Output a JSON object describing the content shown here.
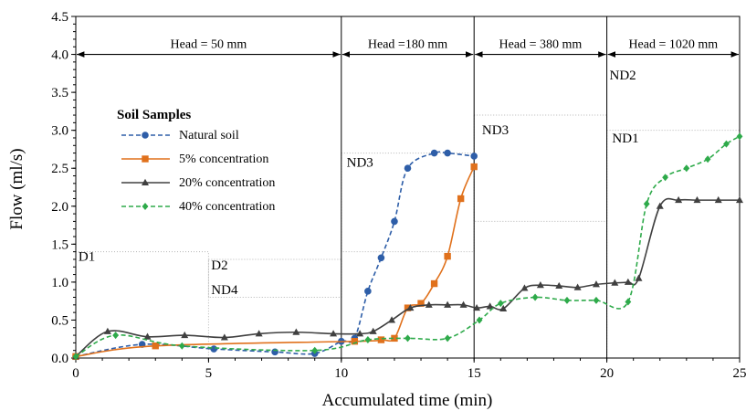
{
  "chart_data": {
    "type": "line",
    "xlabel": "Accumulated time (min)",
    "ylabel": "Flow (ml/s)",
    "xlim": [
      0,
      25
    ],
    "ylim": [
      0,
      4.5
    ],
    "xticks": [
      "0",
      "5",
      "10",
      "15",
      "20",
      "25"
    ],
    "yticks": [
      "0.0",
      "0.5",
      "1.0",
      "1.5",
      "2.0",
      "2.5",
      "3.0",
      "3.5",
      "4.0",
      "4.5"
    ],
    "legend": {
      "title": "Soil Samples",
      "placement": "left"
    },
    "head_intervals": [
      {
        "label": "Head = 50 mm",
        "from": 0,
        "to": 10,
        "y": 4.0
      },
      {
        "label": "Head =180 mm",
        "from": 10,
        "to": 15,
        "y": 4.0
      },
      {
        "label": "Head = 380 mm",
        "from": 15,
        "to": 20,
        "y": 4.0
      },
      {
        "label": "Head = 1020 mm",
        "from": 20,
        "to": 25,
        "y": 4.0
      }
    ],
    "phase_boundaries": [
      10,
      15,
      20
    ],
    "annotations": [
      {
        "text": "D1",
        "x": 0.1,
        "y": 1.28
      },
      {
        "text": "D2",
        "x": 5.1,
        "y": 1.17
      },
      {
        "text": "ND4",
        "x": 5.1,
        "y": 0.84
      },
      {
        "text": "ND3",
        "x": 10.2,
        "y": 2.52
      },
      {
        "text": "ND3",
        "x": 15.3,
        "y": 2.95
      },
      {
        "text": "ND2",
        "x": 20.1,
        "y": 3.67
      },
      {
        "text": "ND1",
        "x": 20.2,
        "y": 2.84
      }
    ],
    "reference_boxes": [
      {
        "x0": 0,
        "x1": 5,
        "y0": 0,
        "y1": 1.4
      },
      {
        "x0": 5,
        "x1": 10,
        "y0": 0.8,
        "y1": 1.3
      },
      {
        "x0": 10,
        "x1": 15,
        "y0": 1.4,
        "y1": 2.7
      },
      {
        "x0": 15,
        "x1": 20,
        "y0": 1.8,
        "y1": 3.2
      },
      {
        "x0": 20,
        "x1": 25,
        "y0": 0,
        "y1": 3.0
      }
    ],
    "series": [
      {
        "name": "Natural soil",
        "color": "#2E5EA8",
        "dash": true,
        "marker": "circle",
        "x": [
          0,
          2.5,
          5.2,
          7.5,
          9.0,
          10.0,
          10.5,
          11.0,
          11.5,
          12.0,
          12.5,
          13.5,
          14.0,
          15.0
        ],
        "y": [
          0.02,
          0.18,
          0.12,
          0.08,
          0.06,
          0.22,
          0.26,
          0.88,
          1.32,
          1.8,
          2.5,
          2.7,
          2.7,
          2.66
        ]
      },
      {
        "name": "5% concentration",
        "color": "#E0711C",
        "dash": false,
        "marker": "square",
        "x": [
          0,
          3.0,
          10.5,
          11.5,
          12.0,
          12.5,
          13.0,
          13.5,
          14.0,
          14.5,
          15.0
        ],
        "y": [
          0.02,
          0.16,
          0.22,
          0.24,
          0.26,
          0.66,
          0.72,
          0.98,
          1.34,
          2.1,
          2.52
        ]
      },
      {
        "name": "20% concentration",
        "color": "#404040",
        "dash": false,
        "marker": "triangle",
        "x": [
          0,
          1.2,
          2.7,
          4.1,
          5.6,
          6.9,
          8.3,
          9.7,
          10.7,
          11.2,
          11.9,
          12.6,
          13.3,
          14.0,
          14.6,
          15.1,
          15.6,
          16.1,
          16.9,
          17.5,
          18.2,
          18.9,
          19.6,
          20.3,
          20.8,
          21.2,
          22.0,
          22.7,
          23.4,
          24.2,
          25.0
        ],
        "y": [
          0.02,
          0.35,
          0.28,
          0.3,
          0.27,
          0.32,
          0.34,
          0.32,
          0.32,
          0.35,
          0.5,
          0.66,
          0.7,
          0.7,
          0.7,
          0.66,
          0.68,
          0.65,
          0.92,
          0.96,
          0.95,
          0.93,
          0.97,
          0.99,
          1.0,
          1.05,
          2.0,
          2.08,
          2.08,
          2.08,
          2.08
        ]
      },
      {
        "name": "40% concentration",
        "color": "#2EAA4A",
        "dash": true,
        "marker": "diamond",
        "x": [
          0,
          1.5,
          4.0,
          9.0,
          11.0,
          12.5,
          14.0,
          15.2,
          16.0,
          17.3,
          18.5,
          19.6,
          20.8,
          21.5,
          22.2,
          23.0,
          23.8,
          24.5,
          25.0
        ],
        "y": [
          0.02,
          0.3,
          0.16,
          0.1,
          0.24,
          0.26,
          0.26,
          0.5,
          0.72,
          0.8,
          0.76,
          0.76,
          0.74,
          2.03,
          2.38,
          2.5,
          2.62,
          2.82,
          2.92
        ]
      }
    ]
  }
}
